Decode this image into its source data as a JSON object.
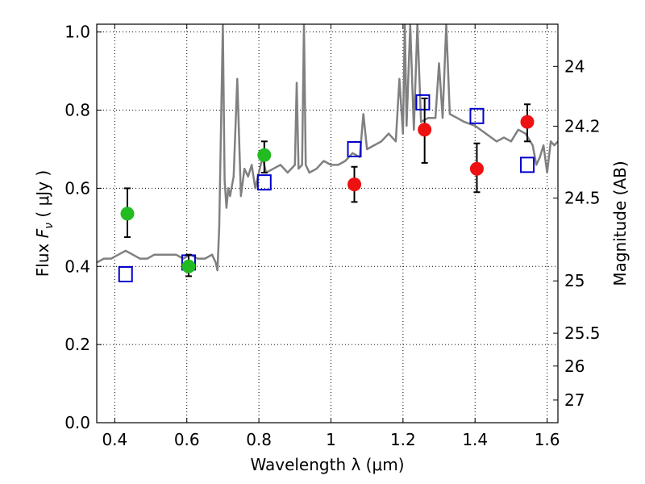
{
  "chart_data": {
    "type": "scatter",
    "xlabel": "Wavelength  λ (μm)",
    "ylabel": "Flux  F_ν  ( μJy )",
    "ylabel_parts": {
      "prefix": "Flux  ",
      "symbol": "F",
      "subscript": "ν",
      "suffix": "  ( μJy )"
    },
    "y2label": "Magnitude (AB)",
    "xlim": [
      0.35,
      1.63
    ],
    "ylim": [
      0.0,
      1.02
    ],
    "grid": true,
    "x_ticks": [
      {
        "value": 0.4,
        "label": "0.4"
      },
      {
        "value": 0.6,
        "label": "0.6"
      },
      {
        "value": 0.8,
        "label": "0.8"
      },
      {
        "value": 1.0,
        "label": "1"
      },
      {
        "value": 1.2,
        "label": "1.2"
      },
      {
        "value": 1.4,
        "label": "1.4"
      },
      {
        "value": 1.6,
        "label": "1.6"
      }
    ],
    "y_ticks": [
      {
        "value": 0.0,
        "label": "0.0"
      },
      {
        "value": 0.2,
        "label": "0.2"
      },
      {
        "value": 0.4,
        "label": "0.4"
      },
      {
        "value": 0.6,
        "label": "0.6"
      },
      {
        "value": 0.8,
        "label": "0.8"
      },
      {
        "value": 1.0,
        "label": "1.0"
      }
    ],
    "y2_ticks": [
      {
        "flux": 0.912,
        "label": "24"
      },
      {
        "flux": 0.759,
        "label": "24.2"
      },
      {
        "flux": 0.575,
        "label": "24.5"
      },
      {
        "flux": 0.363,
        "label": "25"
      },
      {
        "flux": 0.229,
        "label": "25.5"
      },
      {
        "flux": 0.145,
        "label": "26"
      },
      {
        "flux": 0.058,
        "label": "27"
      }
    ],
    "colors": {
      "model_line": "#808080",
      "model_points": "#0000cc",
      "green_points": "#22bb22",
      "red_points": "#ee1111",
      "error_bars": "#000000"
    },
    "model_spectrum": {
      "x": [
        0.35,
        0.37,
        0.39,
        0.41,
        0.43,
        0.45,
        0.47,
        0.49,
        0.51,
        0.53,
        0.55,
        0.57,
        0.59,
        0.61,
        0.63,
        0.65,
        0.67,
        0.68,
        0.685,
        0.69,
        0.7,
        0.705,
        0.71,
        0.715,
        0.72,
        0.73,
        0.74,
        0.75,
        0.76,
        0.77,
        0.78,
        0.79,
        0.8,
        0.81,
        0.82,
        0.84,
        0.86,
        0.88,
        0.9,
        0.905,
        0.91,
        0.92,
        0.925,
        0.93,
        0.94,
        0.96,
        0.98,
        1.0,
        1.02,
        1.04,
        1.06,
        1.08,
        1.09,
        1.1,
        1.12,
        1.14,
        1.16,
        1.18,
        1.19,
        1.2,
        1.205,
        1.21,
        1.22,
        1.23,
        1.24,
        1.25,
        1.27,
        1.29,
        1.3,
        1.31,
        1.32,
        1.33,
        1.35,
        1.37,
        1.4,
        1.43,
        1.46,
        1.48,
        1.5,
        1.52,
        1.54,
        1.56,
        1.57,
        1.58,
        1.59,
        1.6,
        1.61,
        1.62,
        1.63
      ],
      "y": [
        0.41,
        0.42,
        0.42,
        0.43,
        0.44,
        0.43,
        0.42,
        0.42,
        0.43,
        0.43,
        0.43,
        0.43,
        0.42,
        0.43,
        0.42,
        0.42,
        0.43,
        0.41,
        0.39,
        0.5,
        1.02,
        0.62,
        0.55,
        0.6,
        0.58,
        0.63,
        0.88,
        0.58,
        0.65,
        0.63,
        0.66,
        0.6,
        0.64,
        0.68,
        0.64,
        0.65,
        0.66,
        0.64,
        0.66,
        0.87,
        0.65,
        0.66,
        1.02,
        0.66,
        0.64,
        0.65,
        0.67,
        0.66,
        0.66,
        0.67,
        0.69,
        0.68,
        0.79,
        0.7,
        0.71,
        0.72,
        0.74,
        0.72,
        0.88,
        0.74,
        1.02,
        0.76,
        1.02,
        0.75,
        1.02,
        0.77,
        0.78,
        0.78,
        0.92,
        0.78,
        1.02,
        0.79,
        0.78,
        0.77,
        0.76,
        0.74,
        0.72,
        0.73,
        0.72,
        0.75,
        0.74,
        0.71,
        0.66,
        0.68,
        0.71,
        0.64,
        0.72,
        0.71,
        0.72
      ]
    },
    "series": [
      {
        "key": "model_points",
        "marker": "open-square",
        "x": [
          0.43,
          0.605,
          0.815,
          1.065,
          1.255,
          1.405,
          1.545
        ],
        "y": [
          0.38,
          0.41,
          0.615,
          0.7,
          0.82,
          0.785,
          0.66
        ]
      },
      {
        "key": "green_points",
        "marker": "filled-circle",
        "x": [
          0.435,
          0.605,
          0.815
        ],
        "y": [
          0.535,
          0.4,
          0.685
        ],
        "err_low": [
          0.475,
          0.375,
          0.64
        ],
        "err_high": [
          0.6,
          0.43,
          0.72
        ]
      },
      {
        "key": "red_points",
        "marker": "filled-circle",
        "x": [
          1.065,
          1.26,
          1.405,
          1.545
        ],
        "y": [
          0.61,
          0.75,
          0.65,
          0.77
        ],
        "err_low": [
          0.565,
          0.665,
          0.59,
          0.72
        ],
        "err_high": [
          0.655,
          0.83,
          0.715,
          0.815
        ]
      }
    ]
  }
}
